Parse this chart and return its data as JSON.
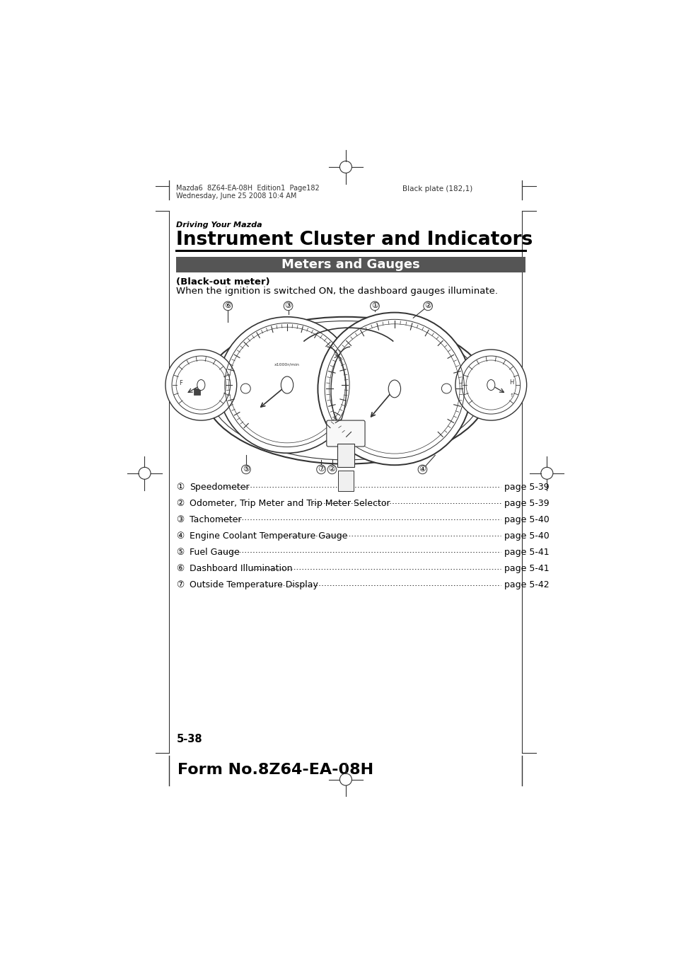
{
  "page_bg": "#ffffff",
  "header_text1": "Mazda6  8Z64-EA-08H  Edition1  Page182",
  "header_text2": "Wednesday, June 25 2008 10:4 AM",
  "header_right": "Black plate (182,1)",
  "section_label": "Driving Your Mazda",
  "section_title": "Instrument Cluster and Indicators",
  "banner_text": "Meters and Gauges",
  "banner_bg": "#555555",
  "banner_text_color": "#ffffff",
  "blackout_label": "(Black-out meter)",
  "blackout_desc": "When the ignition is switched ON, the dashboard gauges illuminate.",
  "list_items": [
    [
      "①",
      "Speedometer",
      "page 5-39"
    ],
    [
      "②",
      "Odometer, Trip Meter and Trip Meter Selector",
      "page 5-39"
    ],
    [
      "③",
      "Tachometer",
      "page 5-40"
    ],
    [
      "④",
      "Engine Coolant Temperature Gauge",
      "page 5-40"
    ],
    [
      "⑤",
      "Fuel Gauge",
      "page 5-41"
    ],
    [
      "⑥",
      "Dashboard Illumination",
      "page 5-41"
    ],
    [
      "⑦",
      "Outside Temperature Display",
      "page 5-42"
    ]
  ],
  "page_number": "5-38",
  "footer_text": "Form No.8Z64-EA-08H",
  "text_color": "#000000",
  "line_color": "#333333"
}
